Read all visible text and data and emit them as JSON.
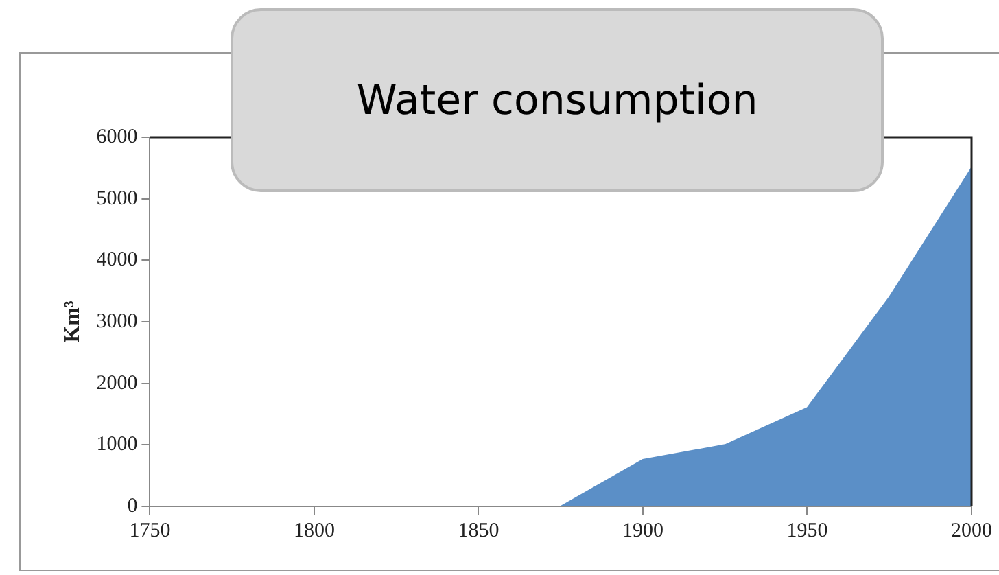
{
  "chart_data": {
    "type": "area",
    "title": "Water consumption",
    "ylabel": "Km³",
    "x": [
      1750,
      1775,
      1800,
      1825,
      1850,
      1875,
      1900,
      1925,
      1950,
      1975,
      2000
    ],
    "series": [
      {
        "color": "#5b8fc7",
        "values": [
          0,
          0,
          0,
          0,
          0,
          0,
          760,
          1000,
          1600,
          3400,
          5500
        ]
      }
    ],
    "xlim": [
      1750,
      2000
    ],
    "xticks": [
      1750,
      1800,
      1850,
      1900,
      1950,
      2000
    ],
    "ylim": [
      0,
      6000
    ],
    "yticks": [
      0,
      1000,
      2000,
      3000,
      4000,
      5000,
      6000
    ],
    "grid": false,
    "legend": false
  }
}
